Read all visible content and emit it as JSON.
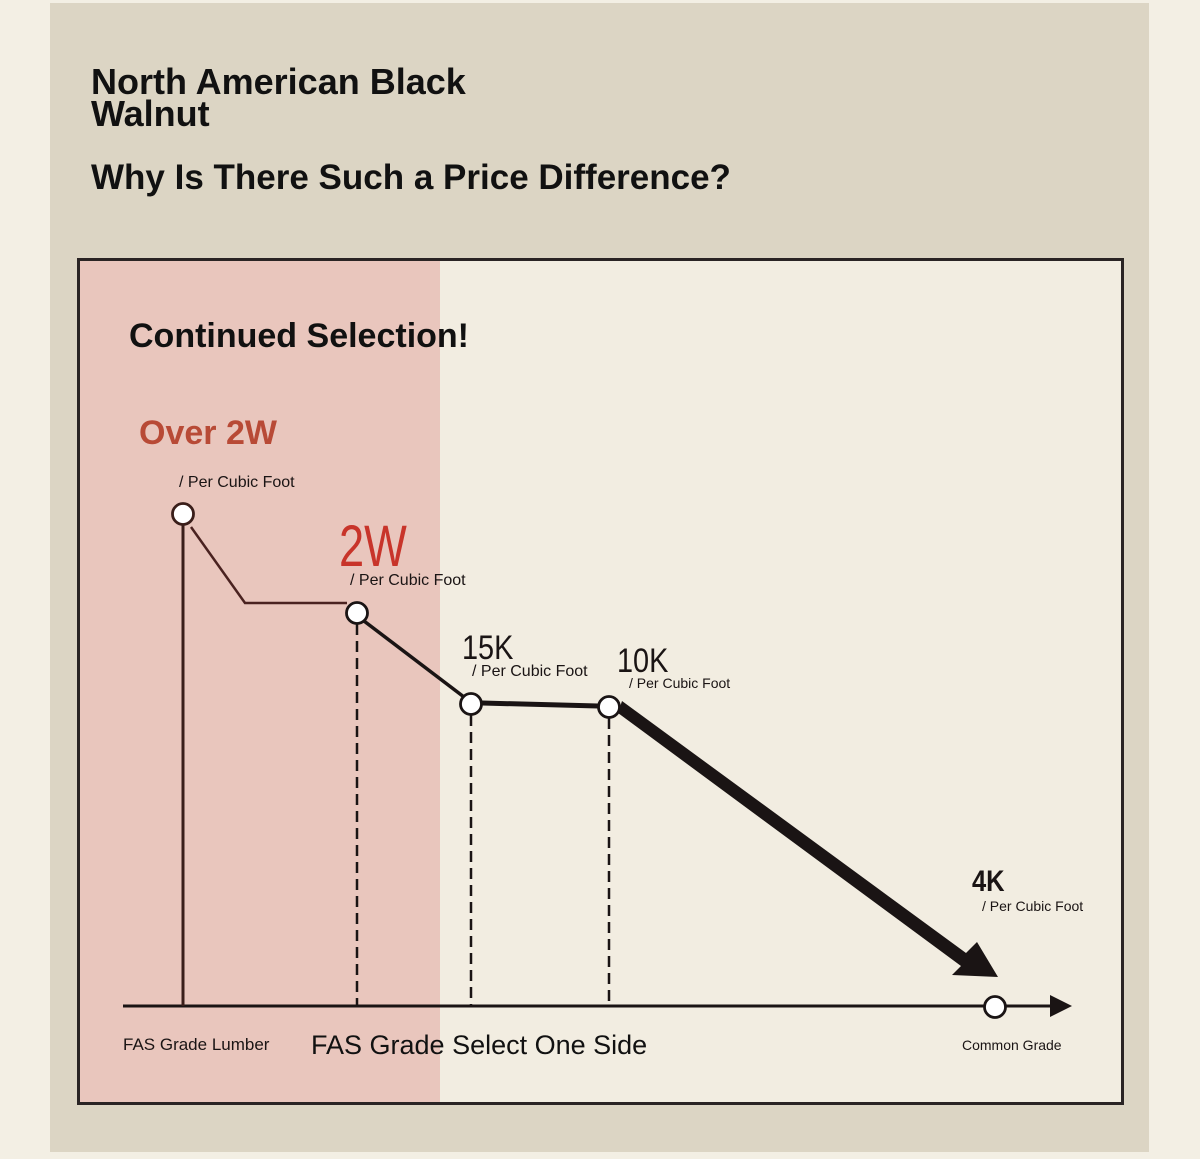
{
  "header": {
    "title": "North American Black Walnut",
    "subtitle": "Why Is There Such a Price Difference?"
  },
  "colors": {
    "panel_bg": "#dcd5c4",
    "chart_bg": "#f2ede1",
    "highlight": "#e9c6bd",
    "accent_red": "#b84a36",
    "price_red": "#c8342a",
    "line": "#1a1414"
  },
  "chart_data": {
    "type": "line",
    "title": "Continued Selection!",
    "unit_label": "/ Per Cubic Foot",
    "highlight_band": "FAS Grade Lumber",
    "points": [
      {
        "price": "Over 2W",
        "unit": "/ Per Cubic Foot",
        "category": "FAS Grade Lumber"
      },
      {
        "price": "2W",
        "unit": "/ Per Cubic Foot",
        "category": ""
      },
      {
        "price": "15K",
        "unit": "/ Per Cubic Foot",
        "category": ""
      },
      {
        "price": "10K",
        "unit": "/ Per Cubic Foot",
        "category": ""
      },
      {
        "price": "4K",
        "unit": "/ Per Cubic Foot",
        "category": "Common Grade"
      }
    ],
    "x_labels": [
      "FAS Grade Lumber",
      "FAS Grade Select One Side",
      "Common Grade"
    ]
  }
}
